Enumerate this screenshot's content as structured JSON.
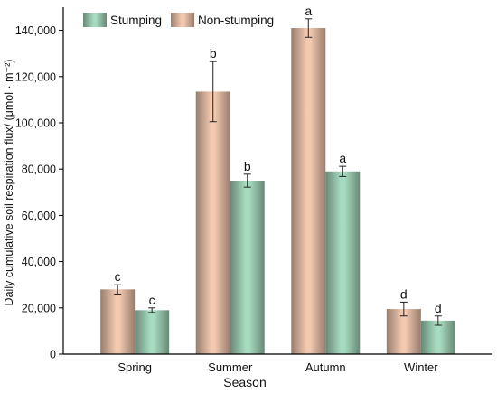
{
  "chart_data": {
    "type": "bar",
    "xlabel": "Season",
    "ylabel": "Daily cumulative soil respiration flux/ (μmol · m⁻²)",
    "categories": [
      "Spring",
      "Summer",
      "Autumn",
      "Winter"
    ],
    "ylim": [
      0,
      150000
    ],
    "yticks": [
      0,
      20000,
      40000,
      60000,
      80000,
      100000,
      120000,
      140000
    ],
    "ytick_labels": [
      "0",
      "20,000",
      "40,000",
      "60,000",
      "80,000",
      "100,000",
      "120,000",
      "140,000"
    ],
    "grid": false,
    "legend_position": "top-left",
    "series": [
      {
        "name": "Non-stumping",
        "color": "#f3c9b0",
        "values": [
          28000,
          113500,
          141000,
          19500
        ],
        "errors": [
          2000,
          13000,
          4000,
          3000
        ],
        "letters": [
          "c",
          "b",
          "a",
          "d"
        ]
      },
      {
        "name": "Stumping",
        "color": "#a7dcc0",
        "values": [
          19000,
          75000,
          79000,
          14500
        ],
        "errors": [
          1000,
          2800,
          2200,
          2000
        ],
        "letters": [
          "c",
          "b",
          "a",
          "d"
        ]
      }
    ],
    "legend_order": [
      "Stumping",
      "Non-stumping"
    ]
  }
}
